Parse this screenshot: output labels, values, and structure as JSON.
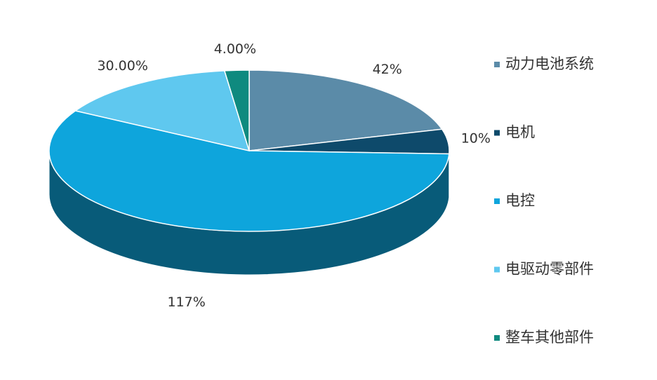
{
  "chart_data": {
    "type": "pie",
    "categories": [
      "动力电池系统",
      "电机",
      "电控",
      "电驱动零部件",
      "整车其他部件"
    ],
    "values": [
      42,
      10,
      117,
      30,
      4
    ],
    "value_labels": [
      "42%",
      "10%",
      "117%",
      "30.00%",
      "4.00%"
    ],
    "colors": [
      "#5b8ba8",
      "#0e4a6b",
      "#0ea5dc",
      "#5fc8ef",
      "#0f8a7f"
    ],
    "legend": "right"
  }
}
